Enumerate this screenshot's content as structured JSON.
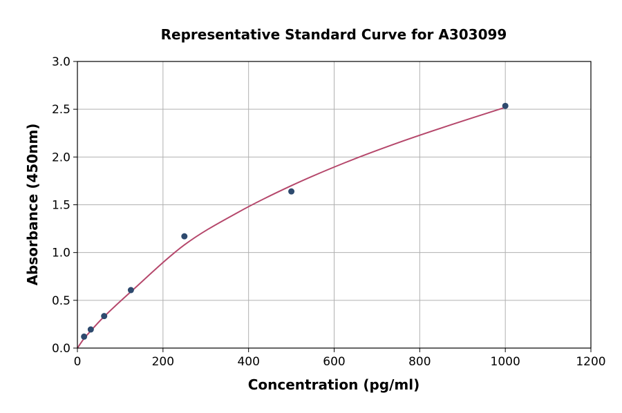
{
  "chart_data": {
    "type": "scatter",
    "title": "Representative Standard Curve for A303099",
    "xlabel": "Concentration (pg/ml)",
    "ylabel": "Absorbance (450nm)",
    "xlim": [
      0,
      1200
    ],
    "ylim": [
      0,
      3.0
    ],
    "xticks": [
      "0",
      "200",
      "400",
      "600",
      "800",
      "1000",
      "1200"
    ],
    "yticks": [
      "0.0",
      "0.5",
      "1.0",
      "1.5",
      "2.0",
      "2.5",
      "3.0"
    ],
    "grid": true,
    "points": [
      {
        "x": 15.6,
        "y": 0.12
      },
      {
        "x": 31.25,
        "y": 0.195
      },
      {
        "x": 62.5,
        "y": 0.335
      },
      {
        "x": 125,
        "y": 0.607
      },
      {
        "x": 250,
        "y": 1.17
      },
      {
        "x": 500,
        "y": 1.64
      },
      {
        "x": 1000,
        "y": 2.535
      }
    ],
    "fit_curve": [
      {
        "x": 0,
        "y": 0
      },
      {
        "x": 15.6,
        "y": 0.1
      },
      {
        "x": 31.25,
        "y": 0.18
      },
      {
        "x": 62.5,
        "y": 0.33
      },
      {
        "x": 125,
        "y": 0.59
      },
      {
        "x": 250,
        "y": 1.08
      },
      {
        "x": 375,
        "y": 1.42
      },
      {
        "x": 500,
        "y": 1.7
      },
      {
        "x": 625,
        "y": 1.94
      },
      {
        "x": 750,
        "y": 2.15
      },
      {
        "x": 875,
        "y": 2.34
      },
      {
        "x": 1000,
        "y": 2.52
      }
    ],
    "colors": {
      "points": "#2e4a6e",
      "curve": "#b5476b",
      "grid": "#b0b0b0"
    }
  }
}
